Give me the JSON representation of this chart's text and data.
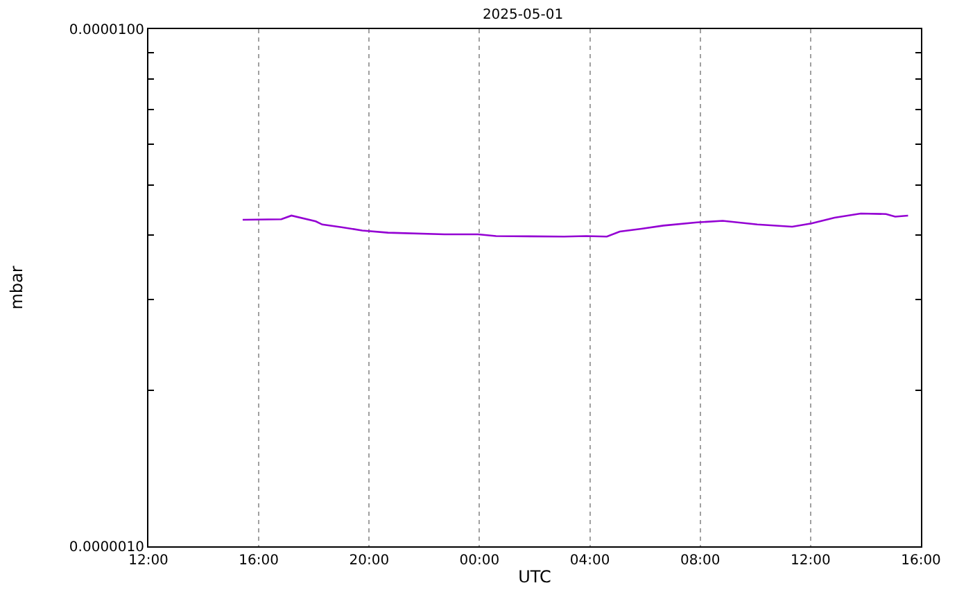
{
  "chart_data": {
    "type": "line",
    "title": "2025-05-01",
    "xlabel": "UTC",
    "ylabel": "mbar",
    "x": [
      "2025-04-30T15:25",
      "2025-04-30T16:49",
      "2025-04-30T17:11",
      "2025-04-30T18:04",
      "2025-04-30T18:18",
      "2025-04-30T19:00",
      "2025-04-30T19:45",
      "2025-04-30T20:41",
      "2025-04-30T22:44",
      "2025-04-30T23:57",
      "2025-05-01T00:36",
      "2025-05-01T03:04",
      "2025-05-01T03:52",
      "2025-05-01T04:37",
      "2025-05-01T05:05",
      "2025-05-01T05:52",
      "2025-05-01T06:40",
      "2025-05-01T07:53",
      "2025-05-01T08:49",
      "2025-05-01T10:04",
      "2025-05-01T11:20",
      "2025-05-01T12:02",
      "2025-05-01T12:52",
      "2025-05-01T13:49",
      "2025-05-01T14:44",
      "2025-05-01T15:04",
      "2025-05-01T15:32"
    ],
    "series": [
      {
        "color": "#9400d3",
        "values": [
          4.28e-06,
          4.29e-06,
          4.36e-06,
          4.25e-06,
          4.19e-06,
          4.14e-06,
          4.08e-06,
          4.04e-06,
          4.01e-06,
          4.01e-06,
          3.98e-06,
          3.97e-06,
          3.98e-06,
          3.97e-06,
          4.06e-06,
          4.11e-06,
          4.17e-06,
          4.23e-06,
          4.26e-06,
          4.19e-06,
          4.15e-06,
          4.21e-06,
          4.32e-06,
          4.4e-06,
          4.39e-06,
          4.34e-06,
          4.36e-06
        ]
      }
    ],
    "log": "y",
    "xlim": [
      "2025-04-30T12:00",
      "2025-05-01T16:00"
    ],
    "xticks": [
      {
        "value": "2025-04-30T12:00",
        "label": "12:00"
      },
      {
        "value": "2025-04-30T16:00",
        "label": "16:00"
      },
      {
        "value": "2025-04-30T20:00",
        "label": "20:00"
      },
      {
        "value": "2025-05-01T00:00",
        "label": "00:00"
      },
      {
        "value": "2025-05-01T04:00",
        "label": "04:00"
      },
      {
        "value": "2025-05-01T08:00",
        "label": "08:00"
      },
      {
        "value": "2025-05-01T12:00",
        "label": "12:00"
      },
      {
        "value": "2025-05-01T16:00",
        "label": "16:00"
      }
    ],
    "ylim": [
      1e-06,
      1e-05
    ],
    "yticks": [
      {
        "value": 1e-06,
        "label": "0.0000010"
      },
      {
        "value": 2e-06,
        "label": null
      },
      {
        "value": 3e-06,
        "label": null
      },
      {
        "value": 4e-06,
        "label": null
      },
      {
        "value": 5e-06,
        "label": null
      },
      {
        "value": 6e-06,
        "label": null
      },
      {
        "value": 7e-06,
        "label": null
      },
      {
        "value": 8e-06,
        "label": null
      },
      {
        "value": 9e-06,
        "label": null
      },
      {
        "value": 1e-05,
        "label": "0.0000100"
      }
    ],
    "grid": "x",
    "marker": "none",
    "line_style": "solid"
  }
}
